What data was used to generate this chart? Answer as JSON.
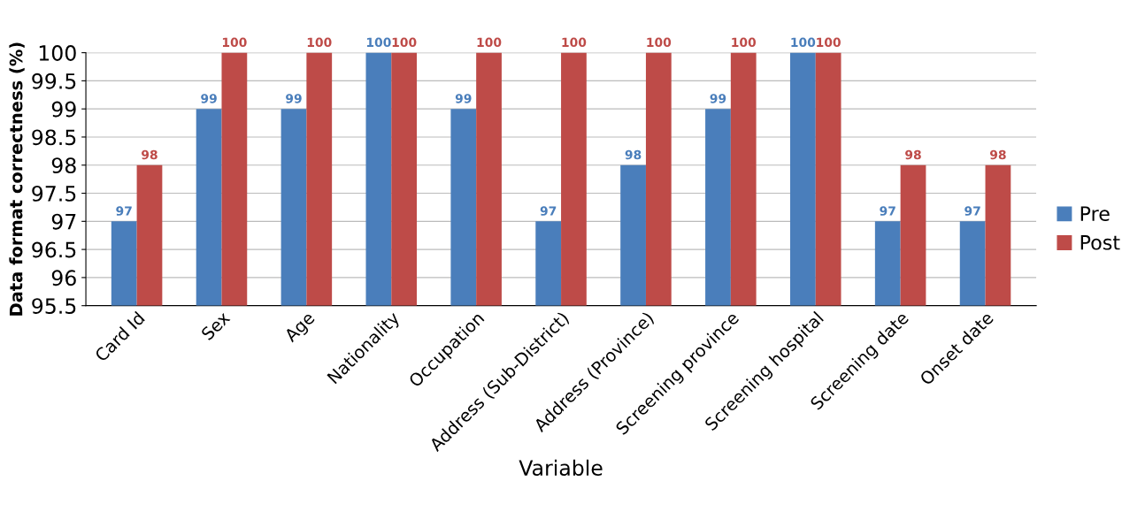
{
  "chart_data": {
    "type": "bar",
    "xlabel": "Variable",
    "ylabel": "Data format correctness (%)",
    "categories": [
      "Card Id",
      "Sex",
      "Age",
      "Nationality",
      "Occupation",
      "Address (Sub-District)",
      "Address (Province)",
      "Screening province",
      "Screening hospital",
      "Screening date",
      "Onset date"
    ],
    "series": [
      {
        "name": "Pre",
        "color": "#4a7ebb",
        "values": [
          97,
          99,
          99,
          100,
          99,
          97,
          98,
          99,
          100,
          97,
          97
        ]
      },
      {
        "name": "Post",
        "color": "#be4b48",
        "values": [
          98,
          100,
          100,
          100,
          100,
          100,
          100,
          100,
          100,
          98,
          98
        ]
      }
    ],
    "ylim": [
      95.5,
      100
    ],
    "yticks": [
      95.5,
      96,
      96.5,
      97,
      97.5,
      98,
      98.5,
      99,
      99.5,
      100
    ],
    "grid": "y",
    "legend": "right",
    "data_labels": true
  }
}
